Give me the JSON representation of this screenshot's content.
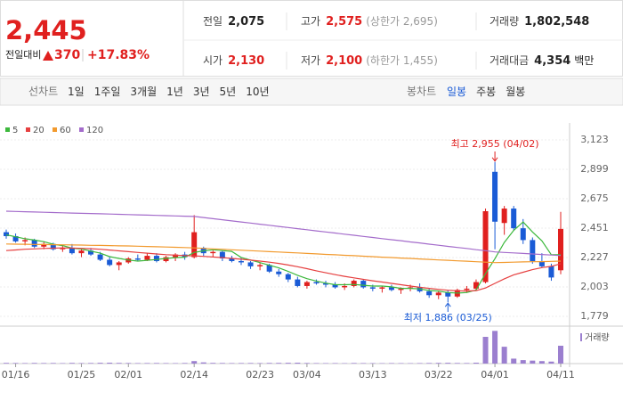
{
  "quote": {
    "price": "2,445",
    "change_label": "전일대비",
    "change": "370",
    "change_pct": "+17.83%",
    "stats": [
      {
        "label": "전일",
        "value": "2,075",
        "color": "#222222"
      },
      {
        "label": "고가",
        "value": "2,575",
        "note": "(상한가 2,695)",
        "color": "#e0201f"
      },
      {
        "label": "거래량",
        "value": "1,802,548",
        "color": "#222222"
      },
      {
        "label": "시가",
        "value": "2,130",
        "color": "#e0201f"
      },
      {
        "label": "저가",
        "value": "2,100",
        "note": "(하한가 1,455)",
        "color": "#e0201f"
      },
      {
        "label": "거래대금",
        "value": "4,354",
        "note": "백만",
        "color": "#222222"
      }
    ]
  },
  "nav": {
    "line_chart": "선차트",
    "periods": [
      "1일",
      "1주일",
      "3개월",
      "1년",
      "3년",
      "5년",
      "10년"
    ],
    "candle_chart": "봉차트",
    "candle_periods": [
      "일봉",
      "주봉",
      "월봉"
    ],
    "selected_candle_period": 0
  },
  "chart_data": {
    "type": "candlestick",
    "up_color": "#e0201f",
    "down_color": "#1a5bd6",
    "volume_color": "#9b7fcf",
    "grid": true,
    "categories": [
      null,
      "01/16",
      null,
      null,
      null,
      null,
      null,
      null,
      "01/25",
      null,
      null,
      null,
      null,
      "02/01",
      null,
      null,
      null,
      null,
      null,
      null,
      "02/14",
      null,
      null,
      null,
      null,
      null,
      null,
      "02/23",
      null,
      null,
      null,
      null,
      "03/04",
      null,
      null,
      null,
      null,
      null,
      null,
      "03/13",
      null,
      null,
      null,
      null,
      null,
      null,
      "03/22",
      null,
      null,
      null,
      null,
      null,
      "04/01",
      null,
      null,
      null,
      null,
      null,
      null,
      "04/11"
    ],
    "open": [
      2420,
      2390,
      2350,
      2360,
      2310,
      2330,
      2290,
      2300,
      2260,
      2280,
      2250,
      2210,
      2170,
      2190,
      2220,
      2210,
      2240,
      2200,
      2230,
      2250,
      2230,
      2300,
      2260,
      2270,
      2220,
      2200,
      2190,
      2160,
      2170,
      2120,
      2100,
      2060,
      2010,
      2040,
      2030,
      2020,
      2000,
      2010,
      2050,
      2000,
      1990,
      2000,
      1980,
      1990,
      2000,
      1970,
      1940,
      1960,
      1930,
      1980,
      1990,
      2040,
      2880,
      2490,
      2600,
      2450,
      2360,
      2200,
      2160,
      2130
    ],
    "high": [
      2440,
      2410,
      2380,
      2370,
      2350,
      2340,
      2320,
      2330,
      2290,
      2300,
      2270,
      2230,
      2200,
      2230,
      2250,
      2260,
      2260,
      2240,
      2260,
      2270,
      2550,
      2310,
      2280,
      2280,
      2240,
      2230,
      2200,
      2190,
      2180,
      2140,
      2110,
      2080,
      2050,
      2060,
      2050,
      2040,
      2030,
      2060,
      2060,
      2020,
      2010,
      2020,
      2000,
      2020,
      2030,
      1990,
      1970,
      1980,
      1990,
      2010,
      2060,
      2600,
      2955,
      2620,
      2620,
      2520,
      2380,
      2260,
      2180,
      2575
    ],
    "low": [
      2370,
      2340,
      2320,
      2300,
      2290,
      2280,
      2270,
      2250,
      2230,
      2240,
      2200,
      2160,
      2130,
      2180,
      2200,
      2200,
      2190,
      2190,
      2200,
      2210,
      2220,
      2240,
      2230,
      2200,
      2190,
      2170,
      2140,
      2130,
      2110,
      2080,
      2040,
      2000,
      1990,
      2020,
      2000,
      1990,
      1980,
      2000,
      1990,
      1970,
      1960,
      1970,
      1950,
      1970,
      1960,
      1920,
      1910,
      1886,
      1920,
      1960,
      1980,
      2030,
      2290,
      2400,
      2430,
      2330,
      2180,
      2150,
      2050,
      2100
    ],
    "close": [
      2390,
      2350,
      2360,
      2310,
      2330,
      2290,
      2300,
      2260,
      2280,
      2250,
      2210,
      2170,
      2190,
      2220,
      2210,
      2240,
      2200,
      2230,
      2250,
      2230,
      2420,
      2260,
      2270,
      2220,
      2200,
      2190,
      2160,
      2170,
      2120,
      2100,
      2060,
      2010,
      2040,
      2030,
      2020,
      2000,
      2010,
      2050,
      2000,
      1990,
      2000,
      1980,
      1990,
      2000,
      1970,
      1940,
      1960,
      1930,
      1980,
      1990,
      2040,
      2580,
      2500,
      2600,
      2450,
      2360,
      2200,
      2160,
      2075,
      2445
    ],
    "volume": [
      70000,
      60000,
      50000,
      65000,
      55000,
      60000,
      45000,
      70000,
      50000,
      60000,
      80000,
      90000,
      70000,
      60000,
      50000,
      55000,
      60000,
      50000,
      45000,
      60000,
      250000,
      120000,
      70000,
      60000,
      50000,
      55000,
      60000,
      50000,
      65000,
      70000,
      80000,
      90000,
      60000,
      50000,
      45000,
      50000,
      40000,
      60000,
      50000,
      45000,
      40000,
      50000,
      45000,
      40000,
      50000,
      60000,
      70000,
      80000,
      60000,
      55000,
      90000,
      2700000,
      3300000,
      1700000,
      500000,
      350000,
      300000,
      250000,
      200000,
      1802548
    ],
    "volume_label": "거래량",
    "volume_ylim": [
      0,
      3600000
    ],
    "ylim": [
      1779,
      3123
    ],
    "yticks": [
      {
        "value": 1779,
        "label": "1,779"
      },
      {
        "value": 2003,
        "label": "2,003"
      },
      {
        "value": 2227,
        "label": "2,227"
      },
      {
        "value": 2451,
        "label": "2,451"
      },
      {
        "value": 2675,
        "label": "2,675"
      },
      {
        "value": 2899,
        "label": "2,899"
      },
      {
        "value": 3123,
        "label": "3,123"
      }
    ],
    "annotations": {
      "high": "최고 2,955 (04/02)",
      "low": "최저 1,886 (03/25)"
    },
    "moving_averages": [
      {
        "name": "5",
        "color": "#3cb83c",
        "values": [
          2400,
          2385,
          2370,
          2360,
          2348,
          2328,
          2318,
          2298,
          2292,
          2276,
          2260,
          2234,
          2220,
          2208,
          2200,
          2206,
          2212,
          2220,
          2226,
          2230,
          2266,
          2278,
          2286,
          2280,
          2274,
          2228,
          2208,
          2188,
          2168,
          2148,
          2122,
          2092,
          2066,
          2048,
          2032,
          2020,
          2020,
          2022,
          2016,
          2010,
          2010,
          2004,
          1992,
          1992,
          1988,
          1976,
          1972,
          1960,
          1956,
          1960,
          1980,
          2104,
          2218,
          2342,
          2434,
          2498,
          2422,
          2354,
          2249,
          2248
        ]
      },
      {
        "name": "20",
        "color": "#e64040",
        "values": [
          2280,
          2285,
          2290,
          2293,
          2296,
          2298,
          2300,
          2299,
          2297,
          2294,
          2290,
          2284,
          2278,
          2272,
          2266,
          2260,
          2254,
          2249,
          2245,
          2242,
          2240,
          2236,
          2231,
          2226,
          2220,
          2214,
          2207,
          2200,
          2192,
          2182,
          2170,
          2157,
          2142,
          2126,
          2111,
          2097,
          2084,
          2072,
          2061,
          2050,
          2040,
          2030,
          2020,
          2010,
          2000,
          1992,
          1985,
          1978,
          1974,
          1972,
          1975,
          1995,
          2030,
          2065,
          2095,
          2115,
          2135,
          2150,
          2160,
          2180
        ]
      },
      {
        "name": "60",
        "color": "#f29a2e",
        "values": [
          2330,
          2329,
          2328,
          2327,
          2326,
          2325,
          2324,
          2323,
          2322,
          2320,
          2319,
          2318,
          2316,
          2315,
          2313,
          2311,
          2309,
          2307,
          2305,
          2303,
          2300,
          2297,
          2293,
          2290,
          2286,
          2283,
          2279,
          2276,
          2272,
          2269,
          2265,
          2262,
          2258,
          2255,
          2251,
          2248,
          2244,
          2241,
          2237,
          2234,
          2230,
          2227,
          2223,
          2220,
          2216,
          2213,
          2209,
          2206,
          2202,
          2199,
          2195,
          2192,
          2188,
          2190,
          2192,
          2194,
          2195,
          2196,
          2198,
          2200
        ]
      },
      {
        "name": "120",
        "color": "#a46ccb",
        "values": [
          2580,
          2578,
          2576,
          2574,
          2572,
          2570,
          2568,
          2566,
          2564,
          2562,
          2560,
          2558,
          2556,
          2554,
          2552,
          2550,
          2548,
          2546,
          2544,
          2542,
          2540,
          2532,
          2523,
          2515,
          2506,
          2498,
          2490,
          2481,
          2473,
          2464,
          2456,
          2447,
          2439,
          2430,
          2422,
          2414,
          2405,
          2397,
          2388,
          2380,
          2371,
          2363,
          2355,
          2346,
          2338,
          2329,
          2321,
          2312,
          2304,
          2296,
          2287,
          2279,
          2270,
          2266,
          2262,
          2258,
          2254,
          2250,
          2246,
          2242
        ]
      }
    ]
  }
}
